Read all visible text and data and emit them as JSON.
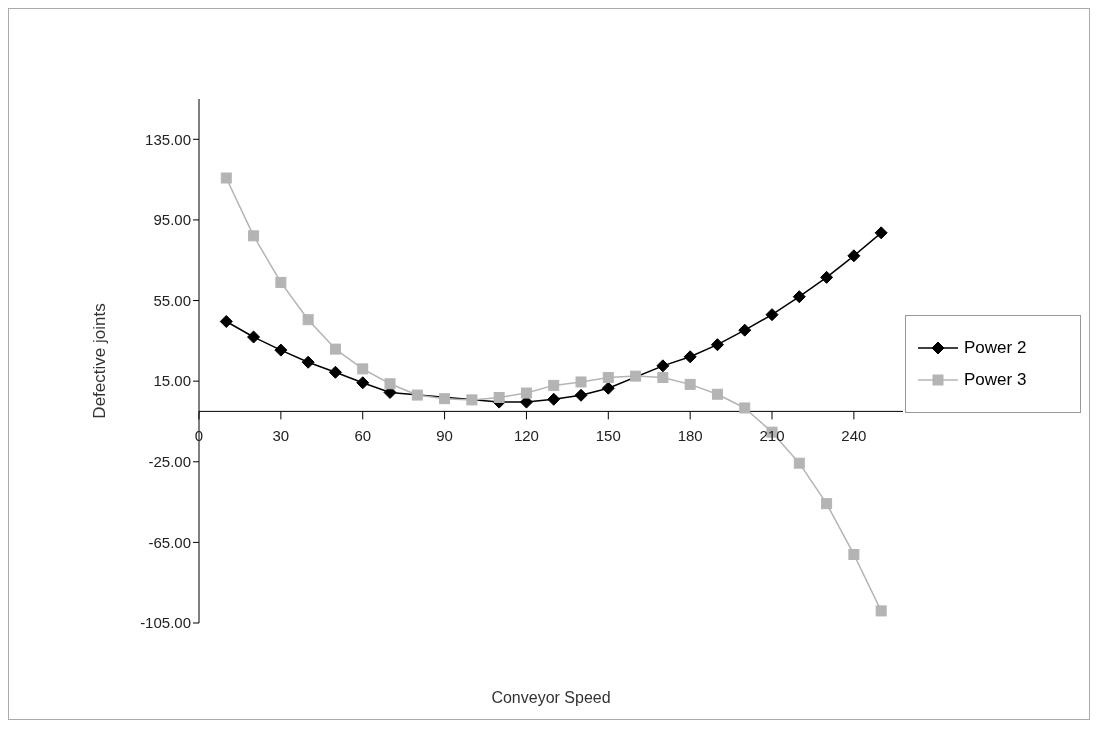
{
  "chart_data": {
    "type": "line",
    "xlabel": "Conveyor Speed",
    "ylabel": "Defective joints",
    "x": [
      10,
      20,
      30,
      40,
      50,
      60,
      70,
      80,
      90,
      100,
      110,
      120,
      130,
      140,
      150,
      160,
      170,
      180,
      190,
      200,
      210,
      220,
      230,
      240,
      250
    ],
    "series": [
      {
        "name": "Power 2",
        "color": "#000000",
        "marker": "diamond",
        "values": [
          44.6,
          36.9,
          30.4,
          24.4,
          19.4,
          14.2,
          9.4,
          null,
          null,
          null,
          4.6,
          4.6,
          6,
          8,
          11.5,
          null,
          22.6,
          27.1,
          33.1,
          40.3,
          48,
          56.9,
          66.5,
          77.2,
          88.6
        ]
      },
      {
        "name": "Power 3",
        "color": "#b4b4b4",
        "marker": "square",
        "values": [
          115.8,
          87.1,
          64,
          45.5,
          30.9,
          21.1,
          13.7,
          8.1,
          6.3,
          5.7,
          6.9,
          9.1,
          12.9,
          14.6,
          16.8,
          17.5,
          16.8,
          13.4,
          8.5,
          1.7,
          -10.3,
          -25.7,
          -45.8,
          -71,
          -99
        ]
      }
    ],
    "xlim": [
      0,
      258
    ],
    "xticks": [
      0,
      30,
      60,
      90,
      120,
      150,
      180,
      210,
      240
    ],
    "ylim": [
      -105,
      155
    ],
    "yticks": [
      {
        "value": -105,
        "label": "-105.00"
      },
      {
        "value": -65,
        "label": "-65.00"
      },
      {
        "value": -25,
        "label": "-25.00"
      },
      {
        "value": 15,
        "label": "15.00"
      },
      {
        "value": 55,
        "label": "55.00"
      },
      {
        "value": 95,
        "label": "95.00"
      },
      {
        "value": 135,
        "label": "135.00"
      }
    ],
    "grid": false,
    "legend": "right"
  }
}
